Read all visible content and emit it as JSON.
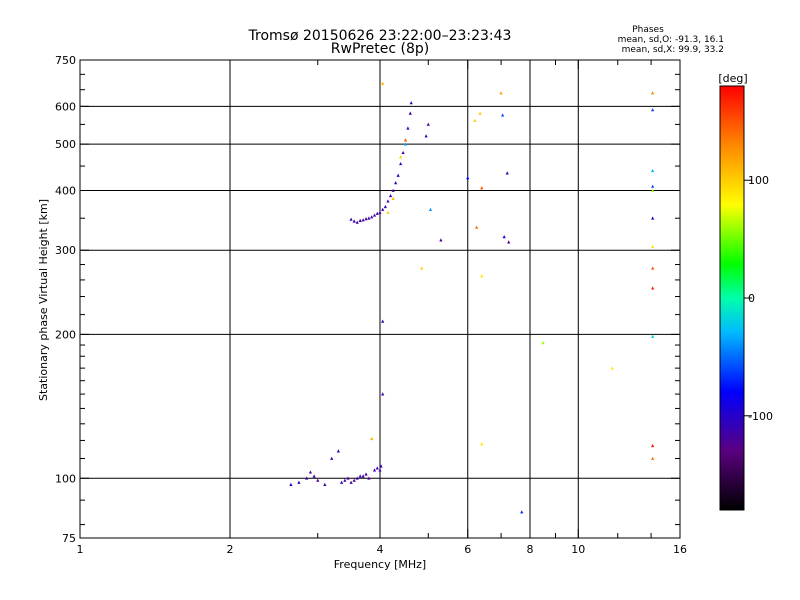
{
  "chart_data": {
    "type": "scatter",
    "title": "Tromsø 20150626 23:22:00–23:23:43",
    "subtitle": "RwPretec (8p)",
    "xlabel": "Frequency [MHz]",
    "ylabel": "Stationary phase Virtual Height [km]",
    "x_scale": "log",
    "y_scale": "log",
    "xlim": [
      1,
      16
    ],
    "ylim": [
      75,
      750
    ],
    "x_major_ticks": [
      1,
      2,
      4,
      6,
      8,
      10,
      16
    ],
    "y_major_ticks": [
      75,
      100,
      200,
      300,
      400,
      500,
      600,
      750
    ],
    "grid": true,
    "stats": {
      "heading": "Phases",
      "o_line": "mean, sd,O: -91.3, 16.1",
      "x_line": "mean, sd,X:  99.9, 33.2"
    },
    "colorbar": {
      "label": "[deg]",
      "range": [
        -180,
        180
      ],
      "ticks": [
        {
          "value": 100,
          "label": "100"
        },
        {
          "value": 0,
          "label": "0"
        },
        {
          "value": -100,
          "label": "-100"
        }
      ]
    },
    "points": [
      {
        "x": 2.65,
        "y": 97,
        "phase": -100
      },
      {
        "x": 2.75,
        "y": 98,
        "phase": -110
      },
      {
        "x": 2.85,
        "y": 100,
        "phase": -115
      },
      {
        "x": 2.9,
        "y": 103,
        "phase": -120
      },
      {
        "x": 2.95,
        "y": 101,
        "phase": -115
      },
      {
        "x": 3.0,
        "y": 99,
        "phase": -120
      },
      {
        "x": 3.1,
        "y": 97,
        "phase": -115
      },
      {
        "x": 3.2,
        "y": 110,
        "phase": -115
      },
      {
        "x": 3.3,
        "y": 114,
        "phase": -110
      },
      {
        "x": 3.35,
        "y": 98,
        "phase": -115
      },
      {
        "x": 3.4,
        "y": 99,
        "phase": -110
      },
      {
        "x": 3.45,
        "y": 100,
        "phase": -115
      },
      {
        "x": 3.5,
        "y": 98,
        "phase": -120
      },
      {
        "x": 3.55,
        "y": 99,
        "phase": -115
      },
      {
        "x": 3.6,
        "y": 100,
        "phase": -110
      },
      {
        "x": 3.65,
        "y": 101,
        "phase": -115
      },
      {
        "x": 3.7,
        "y": 101,
        "phase": -110
      },
      {
        "x": 3.75,
        "y": 102,
        "phase": -115
      },
      {
        "x": 3.8,
        "y": 100,
        "phase": -120
      },
      {
        "x": 3.9,
        "y": 104,
        "phase": -115
      },
      {
        "x": 3.95,
        "y": 105,
        "phase": -110
      },
      {
        "x": 4.0,
        "y": 104,
        "phase": -115
      },
      {
        "x": 4.02,
        "y": 106,
        "phase": -110
      },
      {
        "x": 4.05,
        "y": 150,
        "phase": -115
      },
      {
        "x": 4.05,
        "y": 213,
        "phase": -110
      },
      {
        "x": 3.85,
        "y": 121,
        "phase": 110
      },
      {
        "x": 3.5,
        "y": 348,
        "phase": -110
      },
      {
        "x": 3.55,
        "y": 345,
        "phase": -115
      },
      {
        "x": 3.6,
        "y": 343,
        "phase": -110
      },
      {
        "x": 3.65,
        "y": 346,
        "phase": -115
      },
      {
        "x": 3.7,
        "y": 347,
        "phase": -120
      },
      {
        "x": 3.75,
        "y": 349,
        "phase": -110
      },
      {
        "x": 3.8,
        "y": 350,
        "phase": -115
      },
      {
        "x": 3.85,
        "y": 352,
        "phase": -110
      },
      {
        "x": 3.9,
        "y": 355,
        "phase": -115
      },
      {
        "x": 3.95,
        "y": 358,
        "phase": -110
      },
      {
        "x": 4.0,
        "y": 360,
        "phase": -115
      },
      {
        "x": 4.05,
        "y": 365,
        "phase": -110
      },
      {
        "x": 4.1,
        "y": 370,
        "phase": -115
      },
      {
        "x": 4.15,
        "y": 380,
        "phase": -110
      },
      {
        "x": 4.2,
        "y": 390,
        "phase": -105
      },
      {
        "x": 4.25,
        "y": 400,
        "phase": -115
      },
      {
        "x": 4.3,
        "y": 415,
        "phase": -110
      },
      {
        "x": 4.35,
        "y": 430,
        "phase": -100
      },
      {
        "x": 4.4,
        "y": 455,
        "phase": -110
      },
      {
        "x": 4.45,
        "y": 480,
        "phase": -115
      },
      {
        "x": 4.5,
        "y": 510,
        "phase": 150
      },
      {
        "x": 4.55,
        "y": 540,
        "phase": -110
      },
      {
        "x": 4.6,
        "y": 580,
        "phase": -115
      },
      {
        "x": 4.62,
        "y": 610,
        "phase": -100
      },
      {
        "x": 4.15,
        "y": 360,
        "phase": 100
      },
      {
        "x": 4.25,
        "y": 385,
        "phase": 110
      },
      {
        "x": 4.4,
        "y": 470,
        "phase": 100
      },
      {
        "x": 4.5,
        "y": 500,
        "phase": -30
      },
      {
        "x": 4.95,
        "y": 520,
        "phase": -110
      },
      {
        "x": 5.0,
        "y": 550,
        "phase": -115
      },
      {
        "x": 5.05,
        "y": 365,
        "phase": -40
      },
      {
        "x": 5.3,
        "y": 315,
        "phase": -120
      },
      {
        "x": 4.05,
        "y": 670,
        "phase": 110
      },
      {
        "x": 4.85,
        "y": 275,
        "phase": 100
      },
      {
        "x": 6.0,
        "y": 425,
        "phase": -80
      },
      {
        "x": 6.2,
        "y": 560,
        "phase": 100
      },
      {
        "x": 6.25,
        "y": 335,
        "phase": 140
      },
      {
        "x": 6.35,
        "y": 580,
        "phase": 100
      },
      {
        "x": 6.4,
        "y": 405,
        "phase": 150
      },
      {
        "x": 6.4,
        "y": 265,
        "phase": 90
      },
      {
        "x": 6.4,
        "y": 118,
        "phase": 90
      },
      {
        "x": 7.0,
        "y": 640,
        "phase": 120
      },
      {
        "x": 7.05,
        "y": 575,
        "phase": -60
      },
      {
        "x": 7.1,
        "y": 320,
        "phase": -100
      },
      {
        "x": 7.2,
        "y": 435,
        "phase": -110
      },
      {
        "x": 7.25,
        "y": 312,
        "phase": -120
      },
      {
        "x": 7.7,
        "y": 85,
        "phase": -70
      },
      {
        "x": 8.5,
        "y": 192,
        "phase": 60
      },
      {
        "x": 11.7,
        "y": 170,
        "phase": 90
      },
      {
        "x": 14.1,
        "y": 640,
        "phase": 130
      },
      {
        "x": 14.1,
        "y": 590,
        "phase": -60
      },
      {
        "x": 14.1,
        "y": 440,
        "phase": -30
      },
      {
        "x": 14.1,
        "y": 408,
        "phase": -60
      },
      {
        "x": 14.1,
        "y": 400,
        "phase": 60
      },
      {
        "x": 14.1,
        "y": 350,
        "phase": -100
      },
      {
        "x": 14.1,
        "y": 305,
        "phase": 90
      },
      {
        "x": 14.1,
        "y": 275,
        "phase": 150
      },
      {
        "x": 14.1,
        "y": 250,
        "phase": 170
      },
      {
        "x": 14.1,
        "y": 198,
        "phase": -20
      },
      {
        "x": 14.1,
        "y": 117,
        "phase": 170
      },
      {
        "x": 14.1,
        "y": 110,
        "phase": 140
      }
    ]
  }
}
